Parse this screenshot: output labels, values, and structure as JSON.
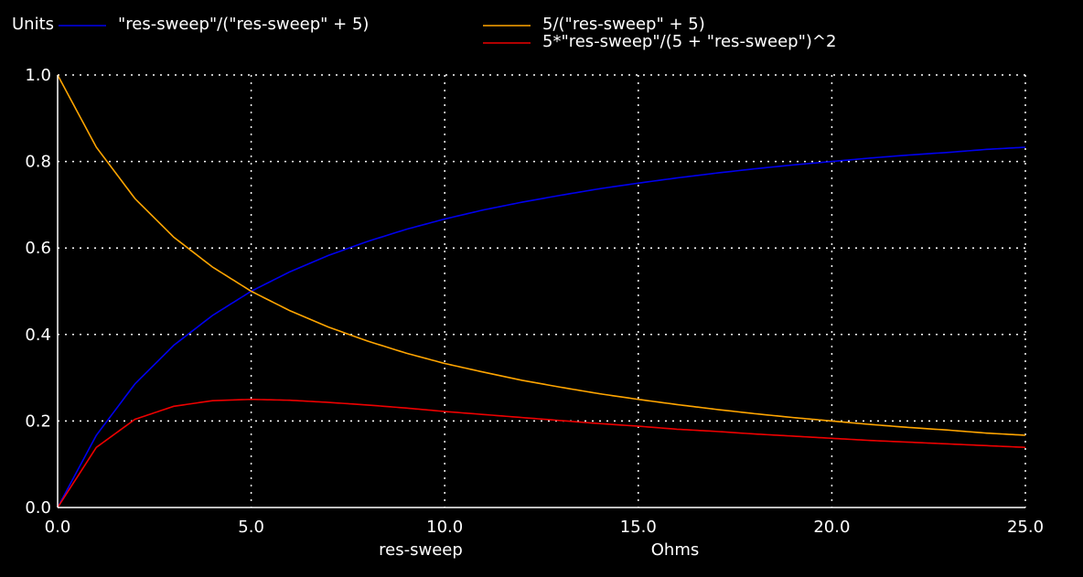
{
  "chart_data": {
    "type": "line",
    "ylabel": "Units",
    "xlabel": "res-sweep",
    "x_unit": "Ohms",
    "xlim": [
      0,
      25
    ],
    "ylim": [
      0,
      1
    ],
    "x_ticks": [
      "0.0",
      "5.0",
      "10.0",
      "15.0",
      "20.0",
      "25.0"
    ],
    "y_ticks": [
      "0.0",
      "0.2",
      "0.4",
      "0.6",
      "0.8",
      "1.0"
    ],
    "grid": true,
    "legend_placement": "top",
    "background": "#000000",
    "axis_color": "#ffffff",
    "grid_color": "#ffffff",
    "x": [
      0,
      1,
      2,
      3,
      4,
      5,
      6,
      7,
      8,
      9,
      10,
      11,
      12,
      13,
      14,
      15,
      16,
      17,
      18,
      19,
      20,
      21,
      22,
      23,
      24,
      25
    ],
    "series": [
      {
        "name": "\"res-sweep\"/(\"res-sweep\" + 5)",
        "color": "#0000ee",
        "values": [
          0.0,
          0.167,
          0.286,
          0.375,
          0.444,
          0.5,
          0.545,
          0.583,
          0.615,
          0.643,
          0.667,
          0.688,
          0.706,
          0.722,
          0.737,
          0.75,
          0.762,
          0.773,
          0.783,
          0.792,
          0.8,
          0.808,
          0.815,
          0.821,
          0.828,
          0.833
        ]
      },
      {
        "name": "5/(\"res-sweep\" + 5)",
        "color": "#ffa500",
        "values": [
          1.0,
          0.833,
          0.714,
          0.625,
          0.556,
          0.5,
          0.455,
          0.417,
          0.385,
          0.357,
          0.333,
          0.313,
          0.294,
          0.278,
          0.263,
          0.25,
          0.238,
          0.227,
          0.217,
          0.208,
          0.2,
          0.192,
          0.185,
          0.179,
          0.172,
          0.167
        ]
      },
      {
        "name": "5*\"res-sweep\"/(5 + \"res-sweep\")^2",
        "color": "#ee0000",
        "values": [
          0.0,
          0.139,
          0.204,
          0.234,
          0.247,
          0.25,
          0.248,
          0.243,
          0.237,
          0.23,
          0.222,
          0.215,
          0.208,
          0.201,
          0.194,
          0.188,
          0.181,
          0.176,
          0.17,
          0.165,
          0.16,
          0.155,
          0.151,
          0.147,
          0.143,
          0.139
        ]
      }
    ]
  }
}
